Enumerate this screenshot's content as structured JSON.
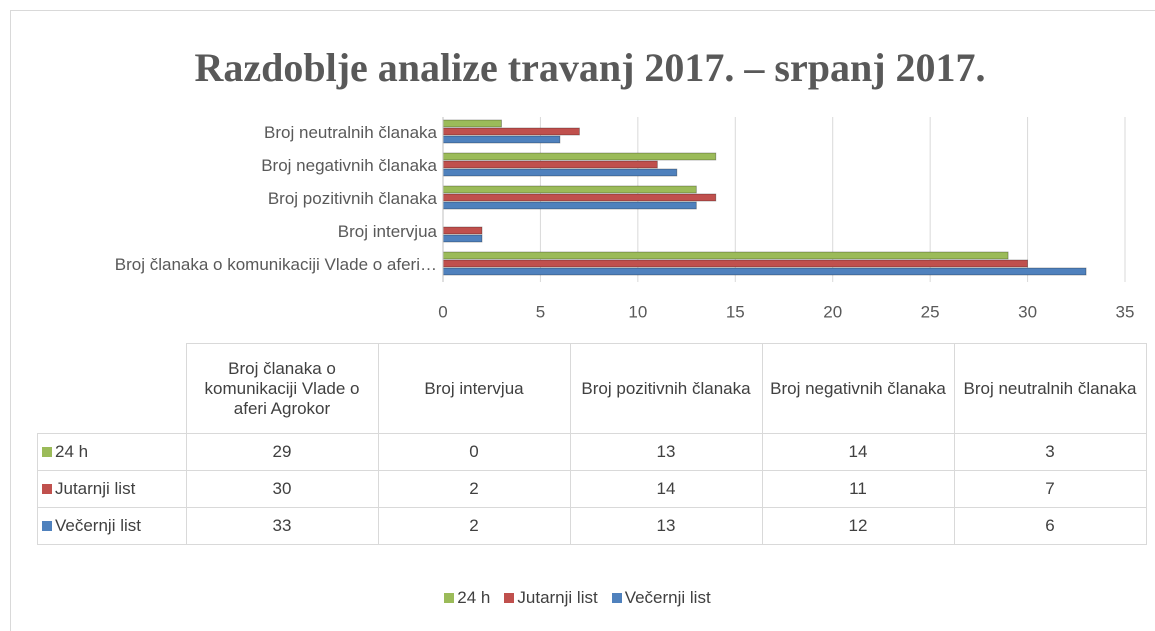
{
  "chart_data": {
    "type": "bar",
    "orientation": "horizontal",
    "title": "Razdoblje analize travanj 2017. – srpanj 2017.",
    "categories": [
      "Broj članaka o komunikaciji Vlade o aferi…",
      "Broj intervjua",
      "Broj pozitivnih članaka",
      "Broj negativnih članaka",
      "Broj neutralnih članaka"
    ],
    "table_columns": [
      "Broj članaka o komunikaciji Vlade o aferi Agrokor",
      "Broj intervjua",
      "Broj pozitivnih članaka",
      "Broj negativnih članaka",
      "Broj neutralnih članaka"
    ],
    "series": [
      {
        "name": "24 h",
        "color": "#9bbb59",
        "values": [
          29,
          0,
          13,
          14,
          3
        ]
      },
      {
        "name": "Jutarnji list",
        "color": "#c0504d",
        "values": [
          30,
          2,
          14,
          11,
          7
        ]
      },
      {
        "name": "Večernji list",
        "color": "#4f81bd",
        "values": [
          33,
          2,
          13,
          12,
          6
        ]
      }
    ],
    "xlim": [
      0,
      35
    ],
    "xticks": [
      0,
      5,
      10,
      15,
      20,
      25,
      30,
      35
    ],
    "grid": true,
    "legend": "bottom"
  }
}
